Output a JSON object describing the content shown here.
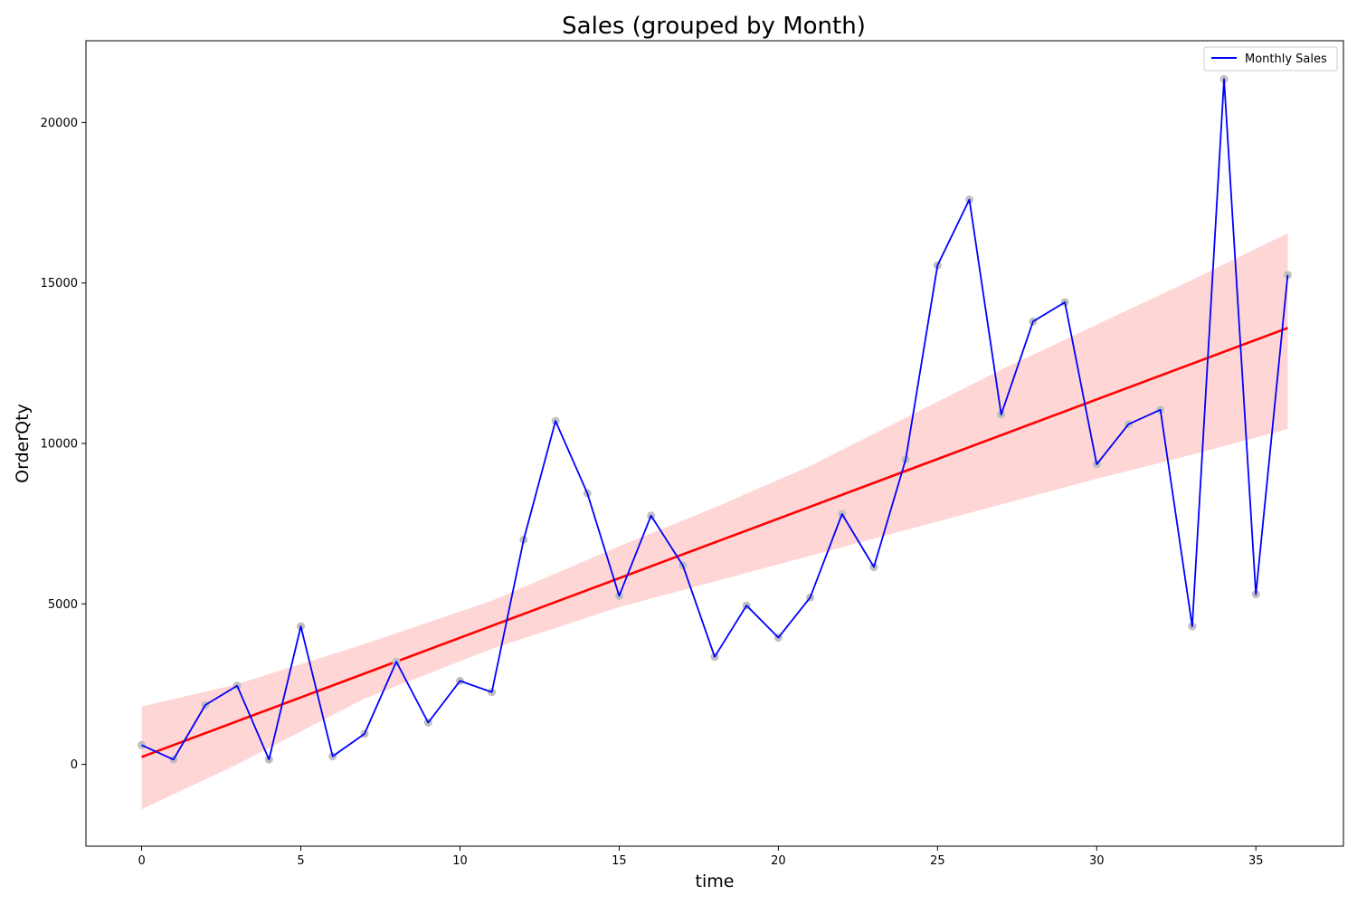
{
  "chart_data": {
    "type": "line",
    "title": "Sales (grouped by Month)",
    "xlabel": "time",
    "ylabel": "OrderQty",
    "xlim": [
      -1.75,
      37.75
    ],
    "ylim": [
      -2550,
      22550
    ],
    "xticks": [
      0,
      5,
      10,
      15,
      20,
      25,
      30,
      35
    ],
    "yticks": [
      0,
      5000,
      10000,
      15000,
      20000
    ],
    "grid": false,
    "legend": {
      "placement": "top-right",
      "entries": [
        "Monthly Sales"
      ]
    },
    "series": [
      {
        "name": "Monthly Sales",
        "color": "#0000ff",
        "x": [
          0,
          1,
          2,
          3,
          4,
          5,
          6,
          7,
          8,
          9,
          10,
          11,
          12,
          13,
          14,
          15,
          16,
          17,
          18,
          19,
          20,
          21,
          22,
          23,
          24,
          25,
          26,
          27,
          28,
          29,
          30,
          31,
          32,
          33,
          34,
          35,
          36
        ],
        "values": [
          600,
          150,
          1850,
          2450,
          150,
          4300,
          250,
          950,
          3200,
          1300,
          2600,
          2250,
          7000,
          10700,
          8450,
          5250,
          7750,
          6200,
          3350,
          4950,
          3950,
          5200,
          7800,
          6150,
          9500,
          15550,
          17600,
          10900,
          13800,
          14400,
          9350,
          10600,
          11050,
          4300,
          21350,
          5300,
          15250
        ]
      }
    ],
    "scatter": {
      "color": "#c0c0c0"
    },
    "regression": {
      "color": "#ff0000",
      "band_color": "#ffd6d6",
      "start": [
        0,
        230
      ],
      "end": [
        36,
        13600
      ],
      "ci_x": [
        0,
        3,
        7,
        11,
        15,
        18,
        21,
        24,
        27,
        30,
        33,
        36
      ],
      "ci_upper": [
        1800,
        2500,
        3750,
        5100,
        6800,
        8000,
        9300,
        10800,
        12300,
        13700,
        15100,
        16550
      ],
      "ci_lower": [
        -1400,
        0,
        2050,
        3600,
        4900,
        5700,
        6500,
        7300,
        8100,
        8900,
        9650,
        10450
      ]
    }
  }
}
